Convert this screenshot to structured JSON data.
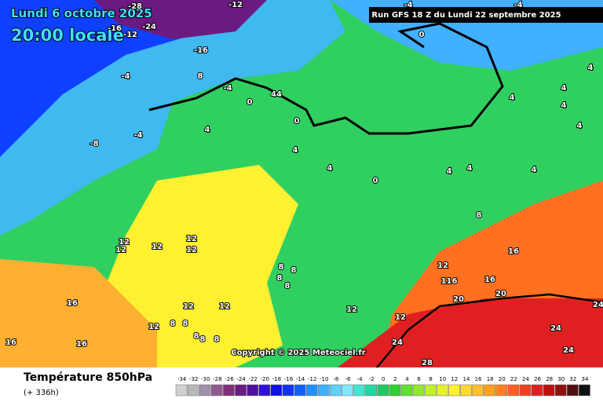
{
  "header": {
    "date": "Lundi 6 octobre 2025",
    "time": "20:00 locale",
    "run": "Run GFS 18 Z du Lundi 22 septembre 2025",
    "copyright": "Copyright © 2025 Meteociel.fr"
  },
  "footer": {
    "title": "Température 850hPa",
    "lead": "(+ 336h)"
  },
  "contour_labels": [
    -28,
    -12,
    -24,
    -16,
    -12,
    -16,
    -4,
    8,
    -4,
    0,
    44,
    0,
    4,
    -8,
    -4,
    4,
    0,
    -4,
    -4,
    4,
    4,
    4,
    4,
    4,
    4,
    0,
    4,
    4,
    4,
    8,
    12,
    12,
    12,
    12,
    12,
    16,
    12,
    116,
    16,
    20,
    20,
    24,
    8,
    8,
    8,
    8,
    16,
    12,
    12,
    12,
    12,
    12,
    8,
    8,
    16,
    16,
    24,
    24,
    24,
    28,
    8,
    8,
    8
  ],
  "legend": {
    "labels": [
      -34,
      -32,
      -30,
      -28,
      -26,
      -24,
      -22,
      -20,
      -18,
      -16,
      -14,
      -12,
      -10,
      -8,
      -6,
      -4,
      -2,
      0,
      2,
      4,
      6,
      8,
      10,
      12,
      14,
      16,
      18,
      20,
      22,
      24,
      26,
      28,
      30,
      32,
      34
    ],
    "colors": [
      "#d0d0d0",
      "#b8b8b8",
      "#a090a8",
      "#905890",
      "#803078",
      "#6a1a80",
      "#5010a0",
      "#3010c8",
      "#1010e8",
      "#1030ff",
      "#1060ff",
      "#2090ff",
      "#40b0ff",
      "#60d0ff",
      "#80e8ff",
      "#40e8d0",
      "#20d8a0",
      "#20c860",
      "#30d030",
      "#60e030",
      "#90e830",
      "#c0f030",
      "#e8f030",
      "#fff030",
      "#ffd830",
      "#ffc030",
      "#ffa020",
      "#ff8020",
      "#ff6020",
      "#f04020",
      "#e02020",
      "#c01010",
      "#901010",
      "#501010",
      "#101010"
    ]
  }
}
